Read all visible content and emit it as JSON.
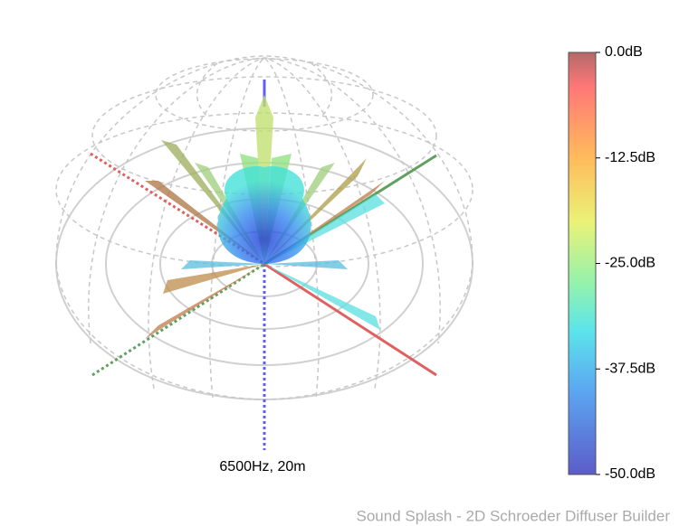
{
  "chart_data": {
    "type": "polar-3d",
    "caption": "6500Hz, 20m",
    "footer": "Sound Splash - 2D Schroeder Diffuser Builder",
    "colorbar": {
      "lim": [
        -50,
        0
      ],
      "ticks": [
        {
          "value": 0,
          "label": "0.0dB"
        },
        {
          "value": -12.5,
          "label": "-12.5dB"
        },
        {
          "value": -25,
          "label": "-25.0dB"
        },
        {
          "value": -37.5,
          "label": "-37.5dB"
        },
        {
          "value": -50,
          "label": "-50.0dB"
        }
      ]
    }
  }
}
